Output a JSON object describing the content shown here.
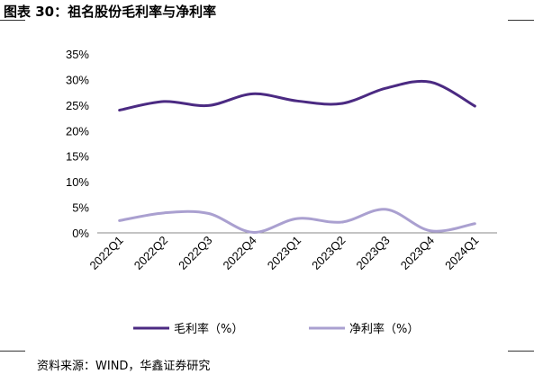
{
  "header": {
    "title": "图表 30：祖名股份毛利率与净利率"
  },
  "footer": {
    "source": "资料来源：WIND，华鑫证券研究"
  },
  "chart_data": {
    "type": "line",
    "categories": [
      "2022Q1",
      "2022Q2",
      "2022Q3",
      "2022Q4",
      "2023Q1",
      "2023Q2",
      "2023Q3",
      "2023Q4",
      "2024Q1"
    ],
    "y_ticks": [
      "0%",
      "5%",
      "10%",
      "15%",
      "20%",
      "25%",
      "30%",
      "35%"
    ],
    "ylim": [
      0,
      35
    ],
    "grid": false,
    "legend_position": "bottom",
    "series": [
      {
        "name": "毛利率（%）",
        "color": "#4b2a82",
        "values": [
          24.0,
          25.7,
          24.9,
          27.2,
          25.8,
          25.3,
          28.3,
          29.5,
          24.8
        ]
      },
      {
        "name": "净利率（%）",
        "color": "#aaa0d0",
        "values": [
          2.4,
          3.9,
          3.8,
          0.1,
          2.8,
          2.1,
          4.6,
          0.4,
          1.8
        ]
      }
    ]
  }
}
